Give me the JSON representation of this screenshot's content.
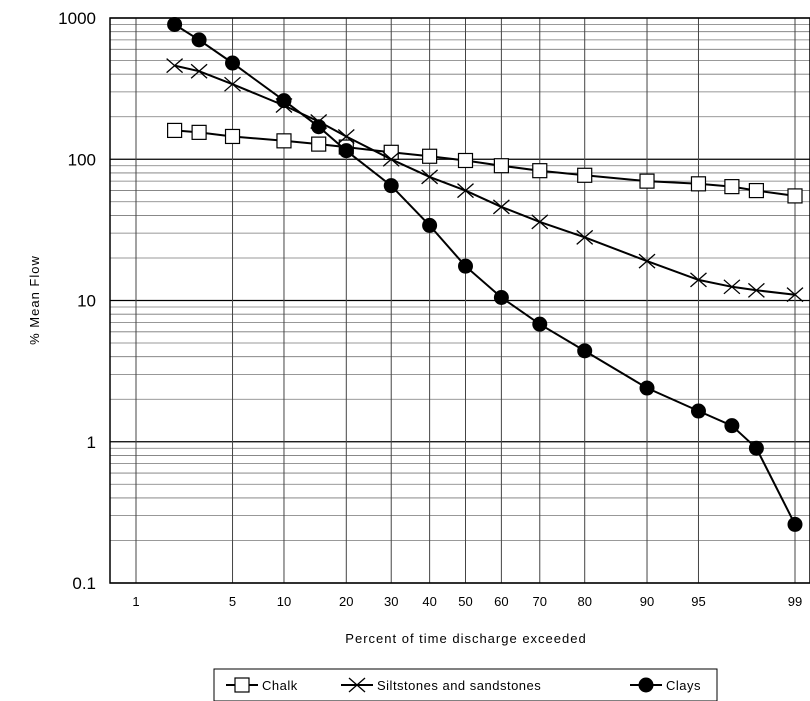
{
  "chart_data": {
    "type": "line",
    "xscale": "probability (normal)",
    "yscale": "log",
    "xlabel": "Percent of time discharge exceeded",
    "ylabel": "% Mean Flow",
    "ylim": [
      0.1,
      1000
    ],
    "xlim": [
      1,
      99
    ],
    "grid": true,
    "legend_position": "bottom",
    "x_ticks": [
      1,
      5,
      10,
      20,
      30,
      40,
      50,
      60,
      70,
      80,
      90,
      95,
      99
    ],
    "x_tick_labels": [
      "1",
      "5",
      "10",
      "20",
      "30",
      "40",
      "50",
      "60",
      "70",
      "80",
      "90",
      "95",
      "99"
    ],
    "y_ticks": [
      0.1,
      1,
      10,
      100,
      1000
    ],
    "y_tick_labels": [
      "0.1",
      "1",
      "10",
      "100",
      "1000"
    ],
    "series": [
      {
        "name": "Chalk",
        "marker": "open-square",
        "x": [
          2,
          3,
          5,
          10,
          15,
          20,
          30,
          40,
          50,
          60,
          70,
          80,
          90,
          95,
          97,
          98,
          99
        ],
        "values": [
          160,
          155,
          145,
          135,
          128,
          122,
          112,
          105,
          98,
          90,
          83,
          77,
          70,
          67,
          64,
          60,
          55
        ]
      },
      {
        "name": "Siltstones and sandstones",
        "marker": "x",
        "x": [
          2,
          3,
          5,
          10,
          15,
          20,
          30,
          40,
          50,
          60,
          70,
          80,
          90,
          95,
          97,
          98,
          99
        ],
        "values": [
          460,
          420,
          340,
          240,
          185,
          145,
          100,
          75,
          60,
          46,
          36,
          28,
          19,
          14,
          12.5,
          11.8,
          11
        ]
      },
      {
        "name": "Clays",
        "marker": "filled-circle",
        "x": [
          2,
          3,
          5,
          10,
          15,
          20,
          30,
          40,
          50,
          60,
          70,
          80,
          90,
          95,
          97,
          98,
          99
        ],
        "values": [
          900,
          700,
          480,
          260,
          170,
          115,
          65,
          34,
          17.5,
          10.5,
          6.8,
          4.4,
          2.4,
          1.65,
          1.3,
          0.9,
          0.26
        ]
      }
    ]
  }
}
